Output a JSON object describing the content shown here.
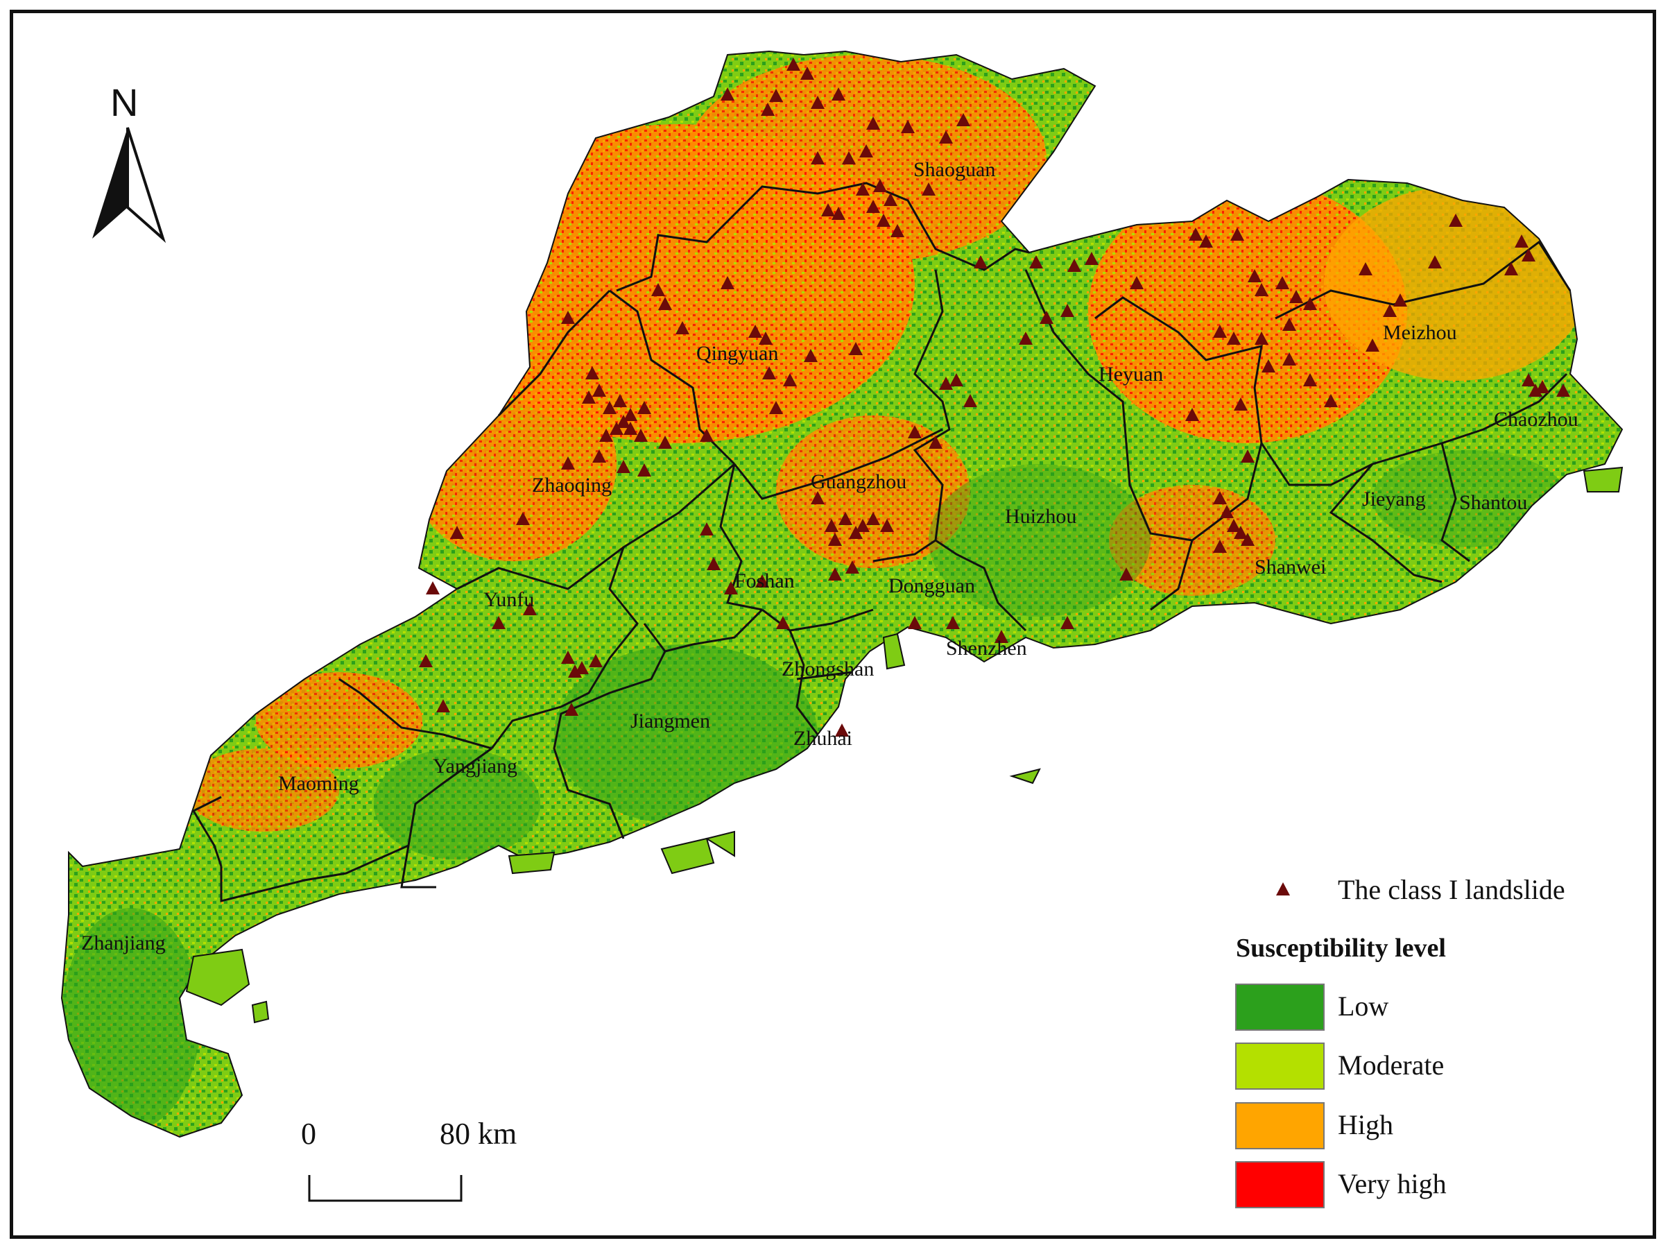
{
  "map": {
    "north_label": "N",
    "cities": [
      {
        "id": "shaoguan",
        "name": "Shaoguan"
      },
      {
        "id": "qingyuan",
        "name": "Qingyuan"
      },
      {
        "id": "meizhou",
        "name": "Meizhou"
      },
      {
        "id": "heyuan",
        "name": "Heyuan"
      },
      {
        "id": "chaozhou",
        "name": "Chaozhou"
      },
      {
        "id": "zhaoqing",
        "name": "Zhaoqing"
      },
      {
        "id": "guangzhou",
        "name": "Guangzhou"
      },
      {
        "id": "huizhou",
        "name": "Huizhou"
      },
      {
        "id": "jieyang",
        "name": "Jieyang"
      },
      {
        "id": "shantou",
        "name": "Shantou"
      },
      {
        "id": "shanwei",
        "name": "Shanwei"
      },
      {
        "id": "foshan",
        "name": "Foshan"
      },
      {
        "id": "dongguan",
        "name": "Dongguan"
      },
      {
        "id": "yunfu",
        "name": "Yunfu"
      },
      {
        "id": "shenzhen",
        "name": "Shenzhen"
      },
      {
        "id": "zhongshan",
        "name": "Zhongshan"
      },
      {
        "id": "jiangmen",
        "name": "Jiangmen"
      },
      {
        "id": "zhuhai",
        "name": "Zhuhai"
      },
      {
        "id": "maoming",
        "name": "Maoming"
      },
      {
        "id": "yangjiang",
        "name": "Yangjiang"
      },
      {
        "id": "zhanjiang",
        "name": "Zhanjiang"
      }
    ]
  },
  "legend": {
    "landslide_label": "The class I landslide",
    "title": "Susceptibility level",
    "classes": [
      {
        "label": "Low",
        "color": "#2ca01c"
      },
      {
        "label": "Moderate",
        "color": "#b4e000"
      },
      {
        "label": "High",
        "color": "#ffa500"
      },
      {
        "label": "Very high",
        "color": "#ff0000"
      }
    ],
    "landslide_color": "#6b0a0a"
  },
  "scale_bar": {
    "start_label": "0",
    "end_label": "80 km"
  }
}
